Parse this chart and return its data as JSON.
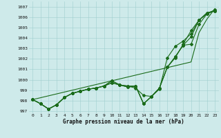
{
  "xlabel": "Graphe pression niveau de la mer (hPa)",
  "xlim": [
    -0.5,
    23.5
  ],
  "ylim": [
    996.8,
    1007.5
  ],
  "yticks": [
    997,
    998,
    999,
    1000,
    1001,
    1002,
    1003,
    1004,
    1005,
    1006,
    1007
  ],
  "xticks": [
    0,
    1,
    2,
    3,
    4,
    5,
    6,
    7,
    8,
    9,
    10,
    11,
    12,
    13,
    14,
    15,
    16,
    17,
    18,
    19,
    20,
    21,
    22,
    23
  ],
  "background_color": "#ceeaea",
  "grid_color": "#9ecece",
  "line_color": "#1a6b1a",
  "series": [
    [
      998.1,
      997.7,
      997.2,
      997.6,
      998.3,
      998.7,
      998.9,
      999.1,
      999.2,
      999.4,
      999.7,
      999.5,
      999.3,
      999.4,
      997.7,
      998.4,
      999.2,
      1001.2,
      1002.2,
      1003.3,
      1003.4,
      1005.3,
      1006.3,
      1006.6
    ],
    [
      998.1,
      997.7,
      997.2,
      997.6,
      998.3,
      998.7,
      998.9,
      999.1,
      999.2,
      999.4,
      999.9,
      999.5,
      999.4,
      999.2,
      998.5,
      998.4,
      999.1,
      1002.1,
      1003.2,
      1003.7,
      1004.4,
      1005.7,
      1006.4,
      1006.6
    ],
    [
      998.1,
      997.7,
      997.2,
      997.6,
      998.3,
      998.7,
      998.9,
      999.1,
      999.2,
      999.4,
      999.7,
      999.5,
      999.3,
      999.4,
      997.7,
      998.4,
      999.2,
      1001.2,
      1002.2,
      1003.3,
      1004.1,
      1005.7,
      1006.4,
      1006.6
    ],
    [
      998.1,
      997.7,
      997.2,
      997.6,
      998.3,
      998.7,
      998.9,
      999.1,
      999.2,
      999.4,
      999.9,
      999.5,
      999.4,
      999.4,
      997.7,
      998.4,
      999.2,
      1001.2,
      1002.1,
      1003.4,
      1004.7,
      1005.7,
      1006.3,
      1006.7
    ],
    [
      998.1,
      998.28,
      998.46,
      998.64,
      998.82,
      999.0,
      999.18,
      999.36,
      999.54,
      999.72,
      999.9,
      1000.08,
      1000.26,
      1000.44,
      1000.62,
      1000.8,
      1000.98,
      1001.16,
      1001.34,
      1001.52,
      1001.7,
      1004.5,
      1005.8,
      1006.8
    ]
  ]
}
